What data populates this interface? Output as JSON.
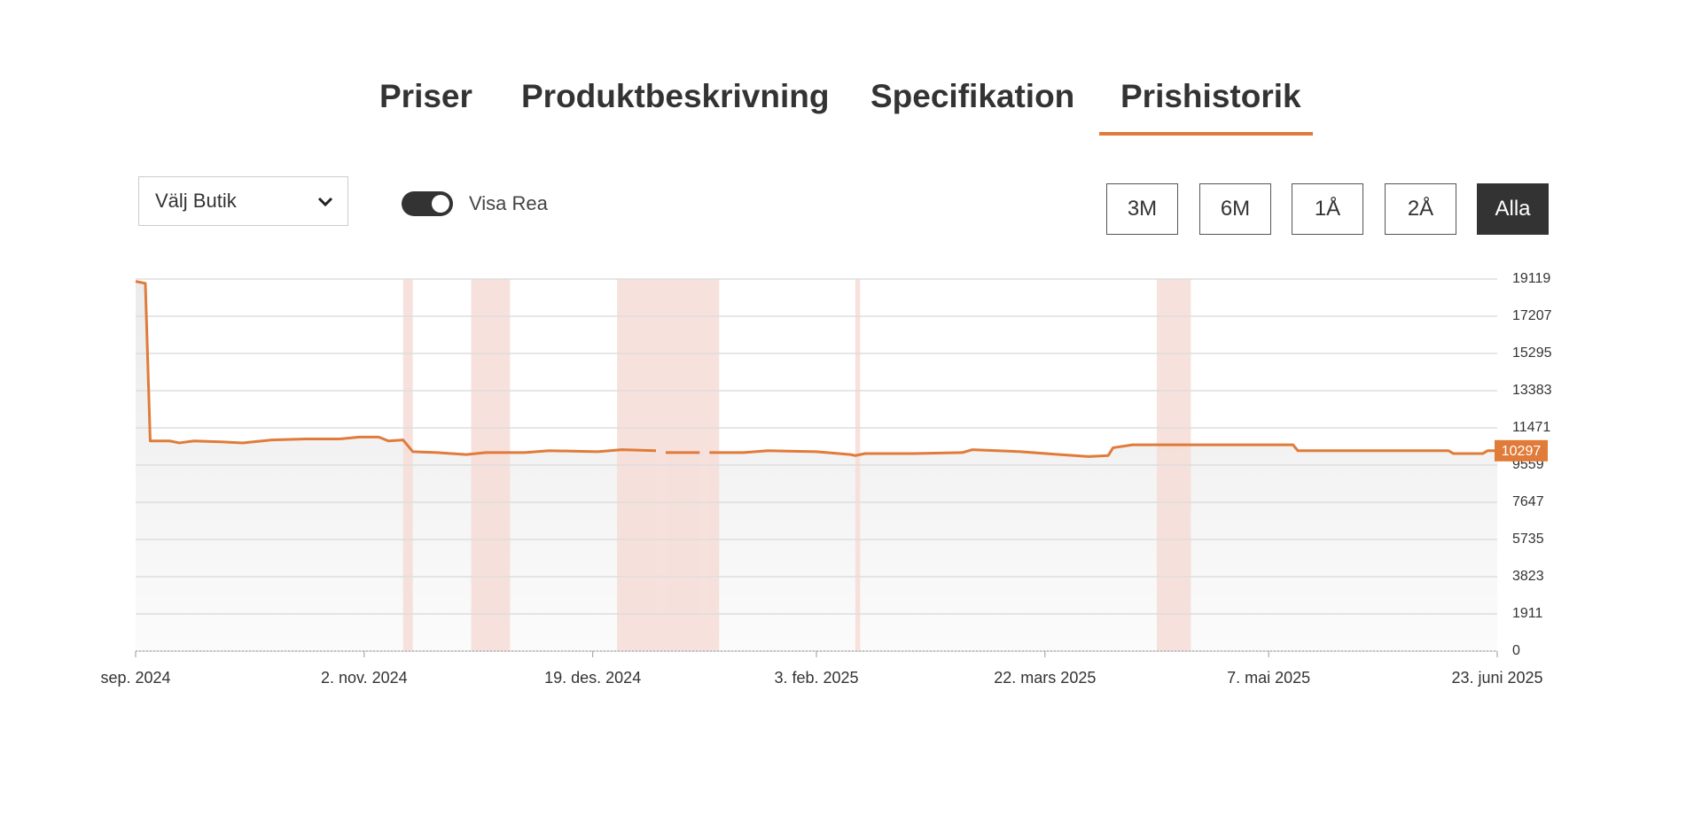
{
  "tabs": [
    "Priser",
    "Produktbeskrivning",
    "Specifikation",
    "Prishistorik"
  ],
  "store_select": "Välj Butik",
  "toggle_label": "Visa Rea",
  "range_buttons": [
    "3M",
    "6M",
    "1Å",
    "2Å",
    "Alla"
  ],
  "chart_data": {
    "type": "line",
    "color": "#e07b39",
    "x": [
      "2024-09-16",
      "2024-09-18",
      "2024-09-19",
      "2024-09-23",
      "2024-09-25",
      "2024-09-28",
      "2024-10-04",
      "2024-10-08",
      "2024-10-14",
      "2024-10-21",
      "2024-10-28",
      "2024-11-01",
      "2024-11-05",
      "2024-11-07",
      "2024-11-10",
      "2024-11-12",
      "2024-11-17",
      "2024-11-23",
      "2024-11-27",
      "2024-12-05",
      "2024-12-10",
      "2024-12-20",
      "2024-12-25",
      "2025-01-01",
      "2025-01-02",
      "2025-01-03",
      "2025-01-10",
      "2025-01-11",
      "2025-01-12",
      "2025-01-19",
      "2025-01-24",
      "2025-02-03",
      "2025-02-10",
      "2025-02-11",
      "2025-02-13",
      "2025-02-23",
      "2025-03-05",
      "2025-03-07",
      "2025-03-17",
      "2025-03-25",
      "2025-03-31",
      "2025-04-04",
      "2025-04-05",
      "2025-04-09",
      "2025-05-12",
      "2025-05-13",
      "2025-06-13",
      "2025-06-14",
      "2025-06-20",
      "2025-06-21",
      "2025-06-23"
    ],
    "values": [
      19000,
      18900,
      10800,
      10800,
      10700,
      10800,
      10750,
      10700,
      10850,
      10900,
      10900,
      11000,
      11000,
      10800,
      10850,
      10250,
      10200,
      10100,
      10200,
      10200,
      10300,
      10250,
      10350,
      10300,
      null,
      10200,
      10200,
      null,
      10200,
      10200,
      10300,
      10250,
      10100,
      10050,
      10150,
      10150,
      10200,
      10350,
      10250,
      10100,
      10000,
      10050,
      10450,
      10600,
      10600,
      10300,
      10300,
      10150,
      10150,
      10297,
      10297
    ],
    "sale_periods": [
      {
        "start": "2024-11-10",
        "end": "2024-11-12"
      },
      {
        "start": "2024-11-24",
        "end": "2024-12-02"
      },
      {
        "start": "2024-12-24",
        "end": "2025-01-14"
      },
      {
        "start": "2025-02-11",
        "end": "2025-02-12"
      },
      {
        "start": "2025-04-14",
        "end": "2025-04-21"
      }
    ],
    "sale_color": "#f6dcd6",
    "xlim": [
      "2024-09-16",
      "2025-06-23"
    ],
    "xticks": [
      {
        "value": "2024-09-16",
        "label": "sep. 2024"
      },
      {
        "value": "2024-11-02",
        "label": "2. nov. 2024"
      },
      {
        "value": "2024-12-19",
        "label": "19. des. 2024"
      },
      {
        "value": "2025-02-03",
        "label": "3. feb. 2025"
      },
      {
        "value": "2025-03-22",
        "label": "22. mars 2025"
      },
      {
        "value": "2025-05-07",
        "label": "7. mai 2025"
      },
      {
        "value": "2025-06-23",
        "label": "23. juni 2025"
      }
    ],
    "ylim": [
      0,
      19119
    ],
    "yticks": [
      0,
      1911,
      3823,
      5735,
      7647,
      9559,
      11471,
      13383,
      15295,
      17207,
      19119
    ],
    "grid": true
  }
}
